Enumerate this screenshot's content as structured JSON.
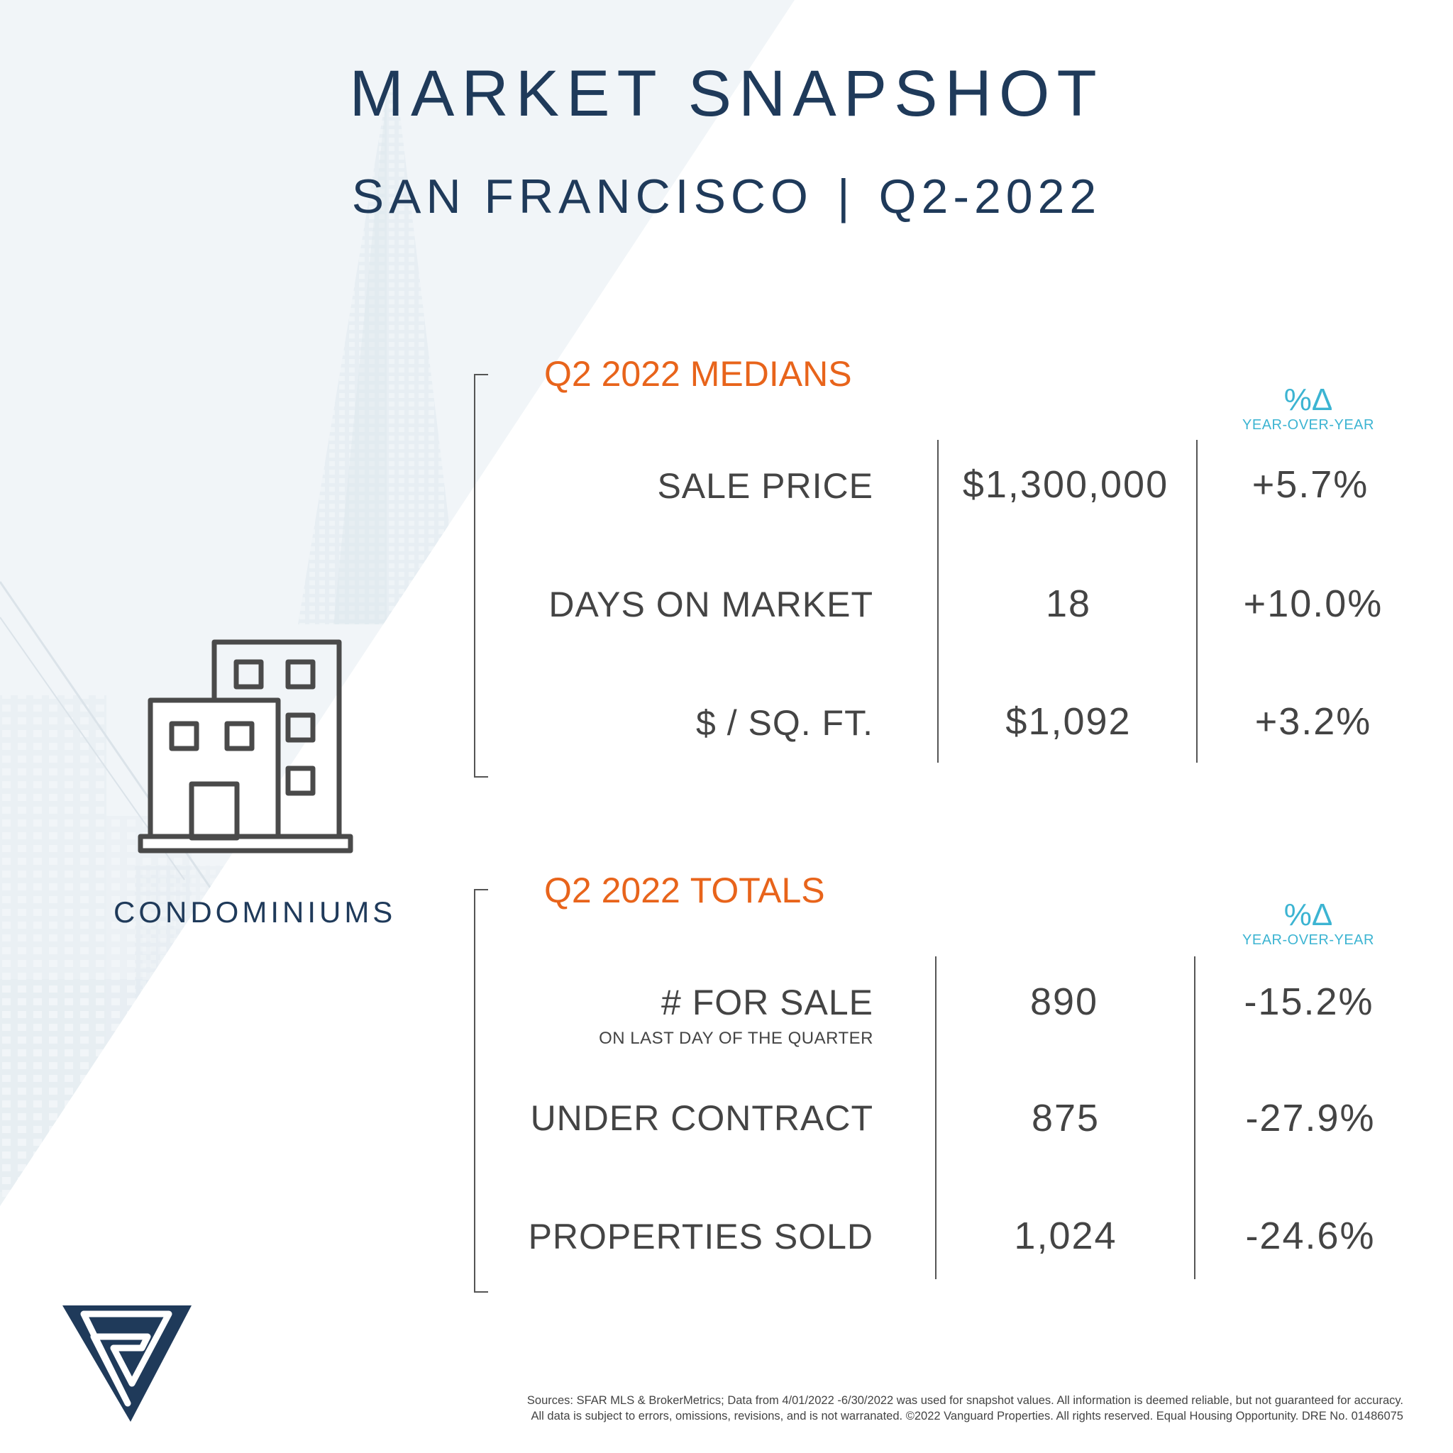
{
  "header": {
    "title": "MARKET SNAPSHOT",
    "location": "SAN FRANCISCO",
    "separator": "|",
    "period": "Q2-2022"
  },
  "property_type": {
    "label": "CONDOMINIUMS",
    "icon": "condo-building-icon"
  },
  "medians": {
    "title_prefix": "Q2 2022",
    "title_suffix": "MEDIANS",
    "yoy_symbol": "%Δ",
    "yoy_label": "YEAR-OVER-YEAR",
    "rows": [
      {
        "label": "SALE PRICE",
        "value": "$1,300,000",
        "change": "+5.7%"
      },
      {
        "label": "DAYS ON MARKET",
        "value": "18",
        "change": "+10.0%"
      },
      {
        "label": "$ / SQ. FT.",
        "value": "$1,092",
        "change": "+3.2%"
      }
    ]
  },
  "totals": {
    "title_prefix": "Q2 2022",
    "title_suffix": "TOTALS",
    "yoy_symbol": "%Δ",
    "yoy_label": "YEAR-OVER-YEAR",
    "rows": [
      {
        "label": "# FOR SALE",
        "sublabel": "ON LAST DAY OF THE QUARTER",
        "value": "890",
        "change": "-15.2%"
      },
      {
        "label": "UNDER CONTRACT",
        "value": "875",
        "change": "-27.9%"
      },
      {
        "label": "PROPERTIES SOLD",
        "value": "1,024",
        "change": "-24.6%"
      }
    ]
  },
  "logo": {
    "icon": "vanguard-logo-icon"
  },
  "footer": {
    "line1": "Sources: SFAR MLS & BrokerMetrics; Data from 4/01/2022 -6/30/2022 was used for snapshot values. All information is deemed reliable, but not guaranteed for accuracy.",
    "line2": "All data is subject to errors, omissions, revisions, and is not warranated. ©2022 Vanguard Properties. All rights reserved. Equal Housing Opportunity. DRE No. 01486075"
  },
  "colors": {
    "navy": "#1f3a5a",
    "orange": "#e8641b",
    "teal": "#3cb4d2",
    "text_gray": "#444444"
  }
}
